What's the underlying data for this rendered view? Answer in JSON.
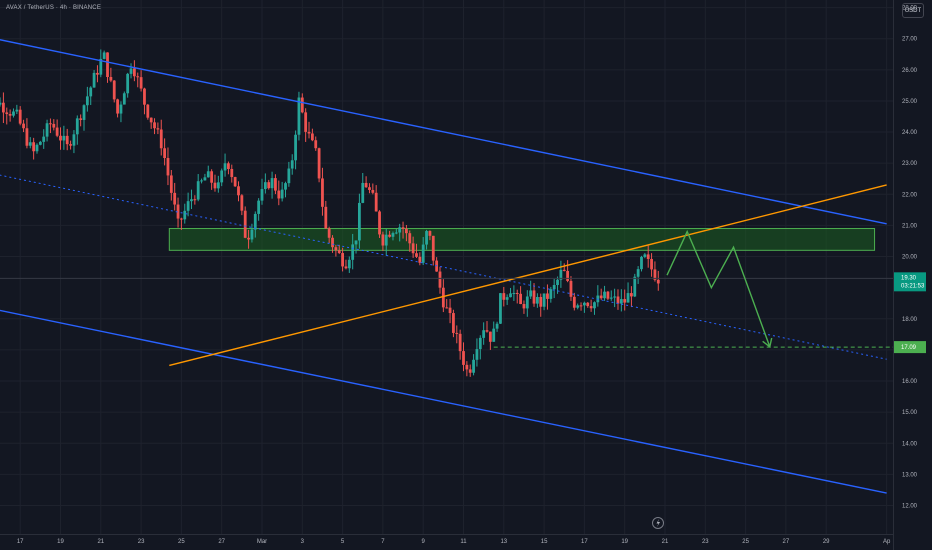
{
  "header": {
    "symbol_title": "AVAX / TetherUS · 4h · BINANCE",
    "currency": "USDT"
  },
  "chart_data": {
    "type": "candlestick",
    "title": "AVAX / TetherUS · 4h · BINANCE",
    "ylim": [
      11.8,
      28.4
    ],
    "y_ticks": [
      "28.00",
      "27.00",
      "26.00",
      "25.00",
      "24.00",
      "23.00",
      "22.00",
      "21.00",
      "20.00",
      "18.00",
      "17.00",
      "16.00",
      "15.00",
      "14.00",
      "13.00",
      "12.00"
    ],
    "y_tick_values": [
      28,
      27,
      26,
      25,
      24,
      23,
      22,
      21,
      20,
      18,
      17,
      16,
      15,
      14,
      13,
      12
    ],
    "x_ticks": [
      "17",
      "19",
      "21",
      "23",
      "25",
      "27",
      "Mar",
      "3",
      "5",
      "7",
      "9",
      "11",
      "13",
      "15",
      "17",
      "19",
      "21",
      "23",
      "25",
      "27",
      "29",
      "Ap"
    ],
    "x_tick_days": [
      -12,
      -10,
      -8,
      -6,
      -4,
      -2,
      0,
      2,
      4,
      6,
      8,
      10,
      12,
      14,
      16,
      18,
      20,
      22,
      24,
      26,
      28,
      31
    ],
    "x_range_days": [
      -14.05,
      31.7
    ],
    "current_price": {
      "value": 19.3,
      "label": "19.30",
      "countdown": "03:21:53"
    },
    "target": {
      "value": 17.09,
      "label": "17.09"
    },
    "candles_keyframes": [
      [
        -14.0,
        25.5
      ],
      [
        -13.0,
        25.0
      ],
      [
        -12.0,
        24.5
      ],
      [
        -11.2,
        23.3
      ],
      [
        -10.3,
        24.3
      ],
      [
        -9.5,
        23.5
      ],
      [
        -8.6,
        25.0
      ],
      [
        -7.7,
        26.5
      ],
      [
        -7.0,
        24.6
      ],
      [
        -6.3,
        26.3
      ],
      [
        -5.6,
        24.8
      ],
      [
        -4.8,
        23.6
      ],
      [
        -4.0,
        21.0
      ],
      [
        -3.4,
        21.8
      ],
      [
        -2.6,
        22.6
      ],
      [
        -2.0,
        22.2
      ],
      [
        -1.6,
        23.2
      ],
      [
        -1.1,
        22.2
      ],
      [
        -0.6,
        20.5
      ],
      [
        0.0,
        21.8
      ],
      [
        0.6,
        22.5
      ],
      [
        1.1,
        21.9
      ],
      [
        1.6,
        22.8
      ],
      [
        2.0,
        25.0
      ],
      [
        2.4,
        24.0
      ],
      [
        2.9,
        23.2
      ],
      [
        3.3,
        20.9
      ],
      [
        3.8,
        20.2
      ],
      [
        4.3,
        19.8
      ],
      [
        4.8,
        20.5
      ],
      [
        5.2,
        22.5
      ],
      [
        5.7,
        21.8
      ],
      [
        6.1,
        20.5
      ],
      [
        6.6,
        20.9
      ],
      [
        7.1,
        21.0
      ],
      [
        7.6,
        20.3
      ],
      [
        8.0,
        19.8
      ],
      [
        8.4,
        20.9
      ],
      [
        8.8,
        19.5
      ],
      [
        9.2,
        18.5
      ],
      [
        9.6,
        17.8
      ],
      [
        10.0,
        17.0
      ],
      [
        10.4,
        16.2
      ],
      [
        10.8,
        17.2
      ],
      [
        11.2,
        17.8
      ],
      [
        11.6,
        17.3
      ],
      [
        12.0,
        18.6
      ],
      [
        12.5,
        19.0
      ],
      [
        13.0,
        18.4
      ],
      [
        13.5,
        18.7
      ],
      [
        14.0,
        18.5
      ],
      [
        14.6,
        18.9
      ],
      [
        15.1,
        19.6
      ],
      [
        15.6,
        18.5
      ],
      [
        16.1,
        18.6
      ],
      [
        16.6,
        18.5
      ],
      [
        17.1,
        18.7
      ],
      [
        17.6,
        18.6
      ],
      [
        18.1,
        18.5
      ],
      [
        18.6,
        19.0
      ],
      [
        19.1,
        20.0
      ],
      [
        19.5,
        19.6
      ],
      [
        19.8,
        19.3
      ]
    ],
    "blue_channel_upper": {
      "p1": [
        -14.0,
        27.1
      ],
      "p2": [
        31.0,
        21.05
      ]
    },
    "blue_channel_lower": {
      "p1": [
        -14.0,
        18.4
      ],
      "p2": [
        31.0,
        12.4
      ]
    },
    "blue_midline": {
      "p1": [
        -14.0,
        22.75
      ],
      "p2": [
        31.0,
        16.7
      ]
    },
    "orange_trendline": {
      "p1": [
        -4.6,
        16.5
      ],
      "p2": [
        31.0,
        22.3
      ]
    },
    "support_zone": {
      "day_from": -4.6,
      "day_to": 30.4,
      "low": 20.2,
      "high": 20.9
    },
    "target_line": {
      "day_from": 11.5,
      "day_to": 31.7,
      "value": 17.09
    },
    "projection_path": [
      [
        20.1,
        19.4
      ],
      [
        21.1,
        20.8
      ],
      [
        22.3,
        19.0
      ],
      [
        23.4,
        20.3
      ],
      [
        25.2,
        17.1
      ]
    ],
    "colors": {
      "up": "#26a69a",
      "down": "#ef5350",
      "channel": "#2962ff",
      "trendline": "#ff9800",
      "zone_fill": "#1b5e20",
      "zone_border": "#4caf50",
      "projection": "#4caf50",
      "target": "#4caf50",
      "grid": "#1e222d",
      "text": "#b2b5be"
    }
  }
}
